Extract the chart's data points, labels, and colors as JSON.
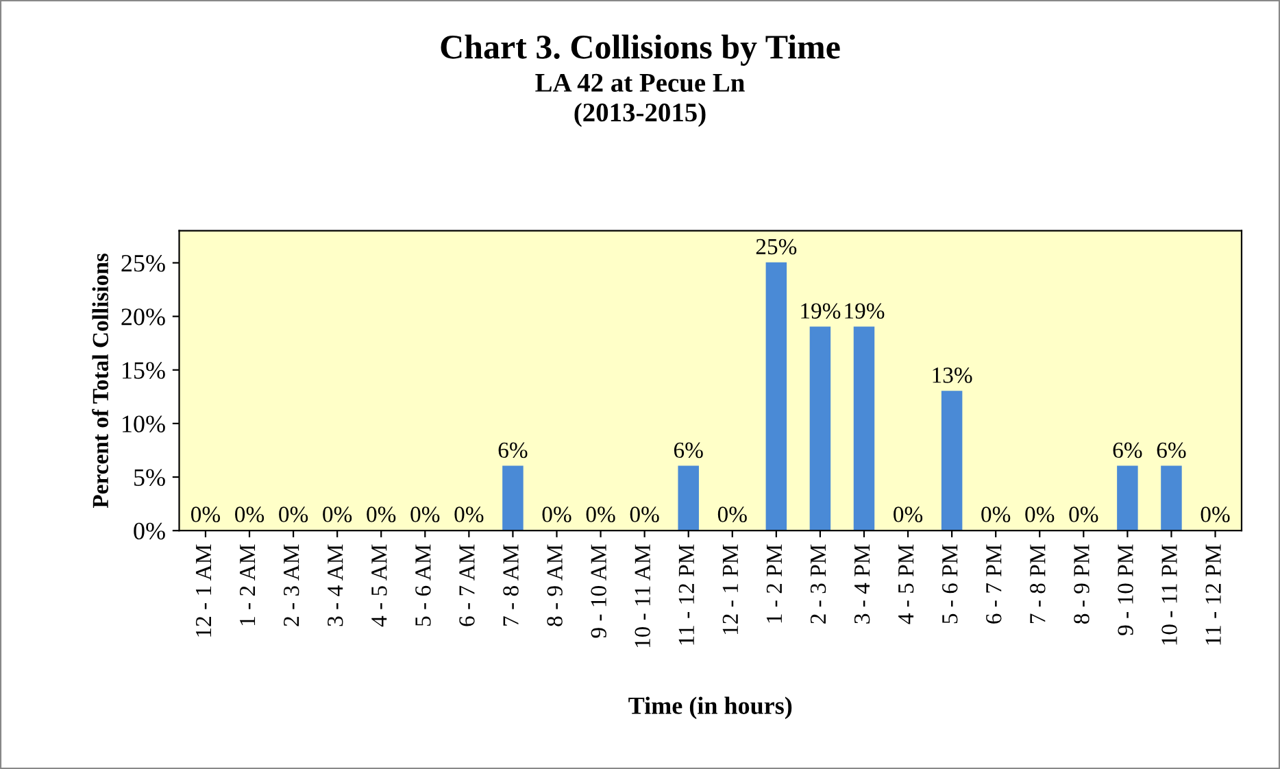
{
  "chart_data": {
    "type": "bar",
    "title": "Chart 3. Collisions by Time",
    "subtitle": "LA 42 at Pecue Ln\n(2013-2015)",
    "xlabel": "Time (in hours)",
    "ylabel": "Percent of Total Collisions",
    "categories": [
      "12 - 1 AM",
      "1 - 2 AM",
      "2 - 3 AM",
      "3 - 4 AM",
      "4 - 5 AM",
      "5 - 6 AM",
      "6 - 7 AM",
      "7 - 8 AM",
      "8 - 9 AM",
      "9 - 10 AM",
      "10 - 11 AM",
      "11 - 12 PM",
      "12 - 1 PM",
      "1 - 2 PM",
      "2 - 3 PM",
      "3 - 4 PM",
      "4 - 5 PM",
      "5 - 6 PM",
      "6 - 7 PM",
      "7 - 8 PM",
      "8 - 9 PM",
      "9 - 10 PM",
      "10 - 11 PM",
      "11 - 12 PM"
    ],
    "values": [
      0,
      0,
      0,
      0,
      0,
      0,
      0,
      6,
      0,
      0,
      0,
      6,
      0,
      25,
      19,
      19,
      0,
      13,
      0,
      0,
      0,
      6,
      6,
      0
    ],
    "value_labels": [
      "0%",
      "0%",
      "0%",
      "0%",
      "0%",
      "0%",
      "0%",
      "6%",
      "0%",
      "0%",
      "0%",
      "6%",
      "0%",
      "25%",
      "19%",
      "19%",
      "0%",
      "13%",
      "0%",
      "0%",
      "0%",
      "6%",
      "6%",
      "0%"
    ],
    "color": "#4a8ad6",
    "ylim": [
      0,
      28
    ],
    "yticks": [
      {
        "value": 0,
        "label": "0%"
      },
      {
        "value": 5,
        "label": "5%"
      },
      {
        "value": 10,
        "label": "10%"
      },
      {
        "value": 15,
        "label": "15%"
      },
      {
        "value": 20,
        "label": "20%"
      },
      {
        "value": 25,
        "label": "25%"
      }
    ],
    "grid": false,
    "legend": false
  }
}
